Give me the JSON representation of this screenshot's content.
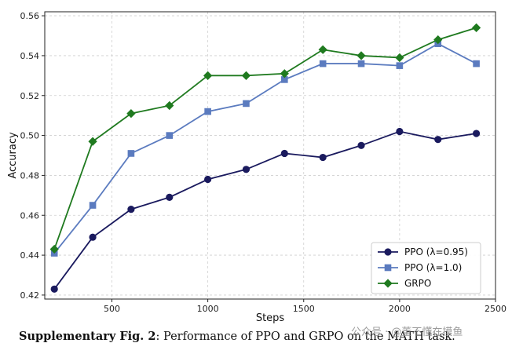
{
  "chart_data": {
    "type": "line",
    "xlabel": "Steps",
    "ylabel": "Accuracy",
    "xlim": [
      150,
      2500
    ],
    "ylim": [
      0.418,
      0.562
    ],
    "xticks": [
      500,
      1000,
      1500,
      2000,
      2500
    ],
    "yticks": [
      0.42,
      0.44,
      0.46,
      0.48,
      0.5,
      0.52,
      0.54,
      0.56
    ],
    "grid": true,
    "legend_position": "bottom-right",
    "x": [
      200,
      400,
      600,
      800,
      1000,
      1200,
      1400,
      1600,
      1800,
      2000,
      2200,
      2400
    ],
    "series": [
      {
        "name": "PPO (λ=0.95)",
        "color": "#1a1a5e",
        "marker": "circle",
        "values": [
          0.423,
          0.449,
          0.463,
          0.469,
          0.478,
          0.483,
          0.491,
          0.489,
          0.495,
          0.502,
          0.498,
          0.501
        ]
      },
      {
        "name": "PPO (λ=1.0)",
        "color": "#5b7bbf",
        "marker": "square",
        "values": [
          0.441,
          0.465,
          0.491,
          0.5,
          0.512,
          0.516,
          0.528,
          0.536,
          0.536,
          0.535,
          0.546,
          0.536
        ]
      },
      {
        "name": "GRPO",
        "color": "#1f7a1f",
        "marker": "diamond",
        "values": [
          0.443,
          0.497,
          0.511,
          0.515,
          0.53,
          0.53,
          0.531,
          0.543,
          0.54,
          0.539,
          0.548,
          0.554
        ]
      }
    ]
  },
  "caption": {
    "prefix": "Supplementary Fig. 2",
    "text": ": Performance of PPO and GRPO on the MATH task."
  },
  "watermark": {
    "text": "公众号 · @董不懂在摸鱼"
  }
}
